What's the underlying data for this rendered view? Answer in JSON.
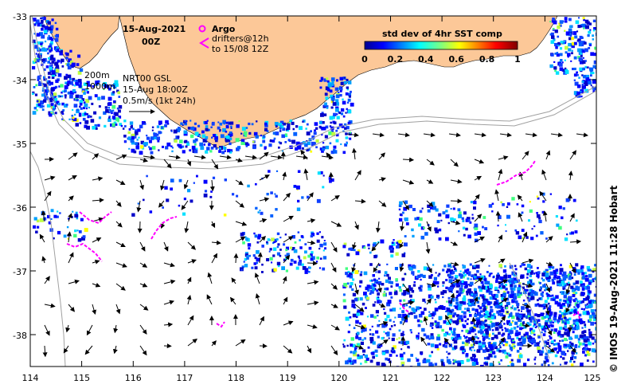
{
  "header": {
    "date": "15-Aug-2021",
    "hour": "00Z"
  },
  "legend": {
    "argo_label": "Argo",
    "drifters_line1": "drifters@12h",
    "drifters_line2": "to 15/08 12Z",
    "isobath_200": "200m",
    "isobath_1000": "1000m",
    "currents_source": "NRT00 GSL",
    "currents_time": "15-Aug 18:00Z",
    "vector_scale": "0.5m/s (1kt 24h)"
  },
  "colorbar": {
    "title": "std dev of 4hr SST comp",
    "ticks": [
      "0",
      "0.2",
      "0.4",
      "0.6",
      "0.8",
      "1"
    ],
    "range": [
      0,
      1
    ]
  },
  "axes": {
    "x_ticks": [
      "114",
      "115",
      "116",
      "117",
      "118",
      "119",
      "120",
      "121",
      "122",
      "123",
      "124",
      "125"
    ],
    "y_ticks": [
      "-33",
      "-34",
      "-35",
      "-36",
      "-37",
      "-38"
    ],
    "lon_range": [
      114,
      125
    ],
    "lat_range": [
      -38.5,
      -33
    ]
  },
  "credit": "© IMOS 19-Aug-2021 11:28 Hobart",
  "colors": {
    "land": "#fcc898",
    "drifter": "#ff00ff",
    "isobath": "#a0a0a0",
    "background": "#ffffff"
  }
}
